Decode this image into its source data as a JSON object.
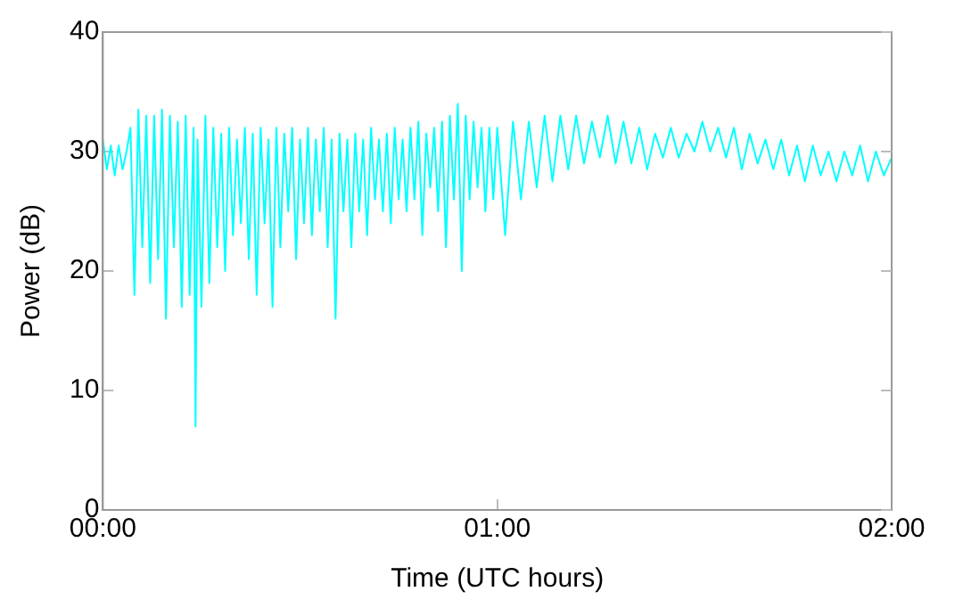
{
  "chart_data": {
    "type": "line",
    "xlabel": "Time (UTC hours)",
    "ylabel": "Power (dB)",
    "xlim": [
      0,
      2
    ],
    "xticks": [
      {
        "value": 0,
        "label": "00:00"
      },
      {
        "value": 1,
        "label": "01:00"
      },
      {
        "value": 2,
        "label": "02:00"
      }
    ],
    "ylim": [
      0,
      40
    ],
    "yticks": [
      0,
      10,
      20,
      30,
      40
    ],
    "grid": false,
    "legend": false,
    "marker": "none",
    "line_style": "solid",
    "series": [
      {
        "color": "#00ffff",
        "x": [
          0,
          0.01,
          0.02,
          0.03,
          0.04,
          0.05,
          0.06,
          0.07,
          0.08,
          0.09,
          0.1,
          0.11,
          0.12,
          0.13,
          0.14,
          0.15,
          0.16,
          0.17,
          0.18,
          0.19,
          0.2,
          0.21,
          0.22,
          0.23,
          0.235,
          0.24,
          0.25,
          0.26,
          0.27,
          0.28,
          0.29,
          0.3,
          0.31,
          0.32,
          0.33,
          0.34,
          0.35,
          0.36,
          0.37,
          0.38,
          0.39,
          0.4,
          0.41,
          0.42,
          0.43,
          0.44,
          0.45,
          0.46,
          0.47,
          0.48,
          0.49,
          0.5,
          0.51,
          0.52,
          0.53,
          0.54,
          0.55,
          0.56,
          0.57,
          0.58,
          0.59,
          0.6,
          0.61,
          0.62,
          0.63,
          0.64,
          0.65,
          0.66,
          0.67,
          0.68,
          0.69,
          0.7,
          0.71,
          0.72,
          0.73,
          0.74,
          0.75,
          0.76,
          0.77,
          0.78,
          0.79,
          0.8,
          0.81,
          0.82,
          0.83,
          0.84,
          0.85,
          0.86,
          0.87,
          0.88,
          0.89,
          0.9,
          0.91,
          0.92,
          0.93,
          0.94,
          0.95,
          0.96,
          0.97,
          0.98,
          0.99,
          1,
          1.02,
          1.04,
          1.06,
          1.08,
          1.1,
          1.12,
          1.14,
          1.16,
          1.18,
          1.2,
          1.22,
          1.24,
          1.26,
          1.28,
          1.3,
          1.32,
          1.34,
          1.36,
          1.38,
          1.4,
          1.42,
          1.44,
          1.46,
          1.48,
          1.5,
          1.52,
          1.54,
          1.56,
          1.58,
          1.6,
          1.62,
          1.64,
          1.66,
          1.68,
          1.7,
          1.72,
          1.74,
          1.76,
          1.78,
          1.8,
          1.82,
          1.84,
          1.86,
          1.88,
          1.9,
          1.92,
          1.94,
          1.96,
          1.98,
          2
        ],
        "values": [
          31,
          28.5,
          30.5,
          28,
          30.5,
          28.5,
          30,
          32,
          18,
          33.5,
          22,
          33,
          19,
          33,
          21,
          33.5,
          16,
          33,
          22,
          32.5,
          17,
          33,
          18,
          32,
          7,
          31,
          17,
          33,
          19,
          32,
          22,
          31.5,
          20,
          32,
          23,
          31,
          24,
          32,
          21,
          31.5,
          18,
          32,
          24,
          31,
          17,
          32,
          22,
          31.5,
          25,
          32,
          21,
          31,
          24,
          32,
          23,
          31,
          25,
          32,
          22,
          31,
          16,
          31.5,
          25,
          31,
          22,
          31.5,
          25,
          31,
          23,
          32,
          26,
          31,
          25,
          31.5,
          24,
          32,
          26,
          31,
          25,
          32,
          26,
          32.5,
          23,
          31.5,
          27,
          32,
          25,
          32.5,
          22,
          33,
          26,
          34,
          20,
          33,
          26,
          32.5,
          27,
          32,
          25,
          32,
          26,
          32,
          23,
          32.5,
          26,
          32.5,
          27,
          33,
          27.5,
          33,
          28.5,
          33,
          29,
          32.5,
          29.5,
          33,
          29,
          32.5,
          29,
          32,
          28.5,
          31.5,
          29.5,
          32,
          29.5,
          31.5,
          30,
          32.5,
          30,
          32,
          29.5,
          32,
          28.5,
          31.5,
          29,
          31,
          28.5,
          31,
          28,
          30.5,
          27.5,
          30.5,
          28,
          30,
          27.5,
          30,
          28,
          30.5,
          27.5,
          30,
          28,
          29.5
        ]
      }
    ]
  }
}
